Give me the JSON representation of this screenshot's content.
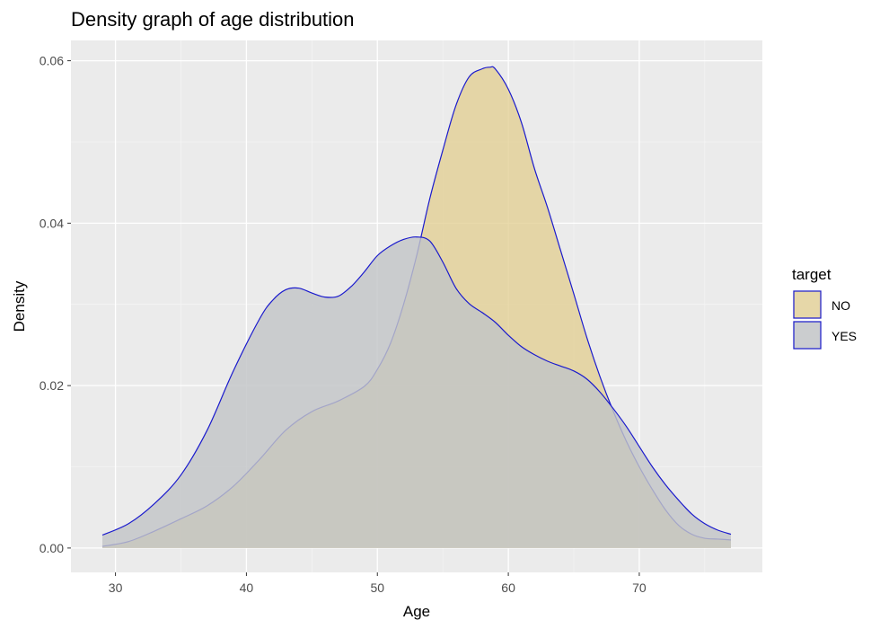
{
  "chart_data": {
    "type": "area",
    "title": "Density graph of age distribution",
    "xlabel": "Age",
    "ylabel": "Density",
    "xlim": [
      26.6,
      79.4
    ],
    "ylim": [
      -0.003,
      0.0625
    ],
    "x_ticks": [
      30,
      40,
      50,
      60,
      70
    ],
    "x_tick_labels": [
      "30",
      "40",
      "50",
      "60",
      "70"
    ],
    "y_ticks": [
      0.0,
      0.02,
      0.04,
      0.06
    ],
    "y_tick_labels": [
      "0.00",
      "0.02",
      "0.04",
      "0.06"
    ],
    "grid": true,
    "legend": {
      "title": "target",
      "position": "right"
    },
    "outline_color": "#1a1acd",
    "panel_background": "#ebebeb",
    "series": [
      {
        "name": "NO",
        "fill": "#e0cc8a",
        "opacity": 0.72,
        "x": [
          29,
          31,
          33,
          35,
          37,
          39,
          41,
          43,
          45,
          47,
          49,
          50,
          51,
          52,
          53,
          54,
          55,
          56,
          57,
          58,
          58.6,
          59,
          60,
          61,
          62,
          63,
          64,
          65,
          66,
          67,
          68,
          69,
          70,
          71,
          72,
          73,
          74,
          75,
          76,
          77
        ],
        "y": [
          0.0002,
          0.0008,
          0.0021,
          0.0036,
          0.0052,
          0.0076,
          0.0109,
          0.0145,
          0.0168,
          0.0181,
          0.0199,
          0.022,
          0.0252,
          0.03,
          0.036,
          0.043,
          0.049,
          0.0545,
          0.058,
          0.059,
          0.0592,
          0.059,
          0.0565,
          0.0524,
          0.0467,
          0.0419,
          0.0366,
          0.0313,
          0.0259,
          0.0211,
          0.0169,
          0.0132,
          0.01,
          0.0072,
          0.0047,
          0.0028,
          0.0017,
          0.0012,
          0.0011,
          0.001
        ]
      },
      {
        "name": "YES",
        "fill": "#c2c4c7",
        "opacity": 0.82,
        "x": [
          29,
          31,
          33,
          35,
          37,
          39,
          41,
          42,
          43,
          44,
          45,
          46,
          47,
          48,
          49,
          50,
          51,
          52,
          53,
          54,
          55,
          56,
          57,
          58,
          59,
          60,
          61,
          62,
          63,
          64,
          65,
          66,
          67,
          68,
          69,
          70,
          71,
          72,
          73,
          74,
          75,
          76,
          77
        ],
        "y": [
          0.0016,
          0.003,
          0.0055,
          0.009,
          0.0145,
          0.0218,
          0.0282,
          0.0305,
          0.0318,
          0.032,
          0.0314,
          0.0309,
          0.031,
          0.0322,
          0.034,
          0.036,
          0.0372,
          0.038,
          0.0383,
          0.0378,
          0.0352,
          0.032,
          0.0301,
          0.029,
          0.0278,
          0.0262,
          0.0248,
          0.0238,
          0.023,
          0.0224,
          0.0218,
          0.0208,
          0.0192,
          0.0172,
          0.015,
          0.0125,
          0.01,
          0.0078,
          0.0059,
          0.0042,
          0.003,
          0.0022,
          0.0017
        ]
      }
    ]
  }
}
